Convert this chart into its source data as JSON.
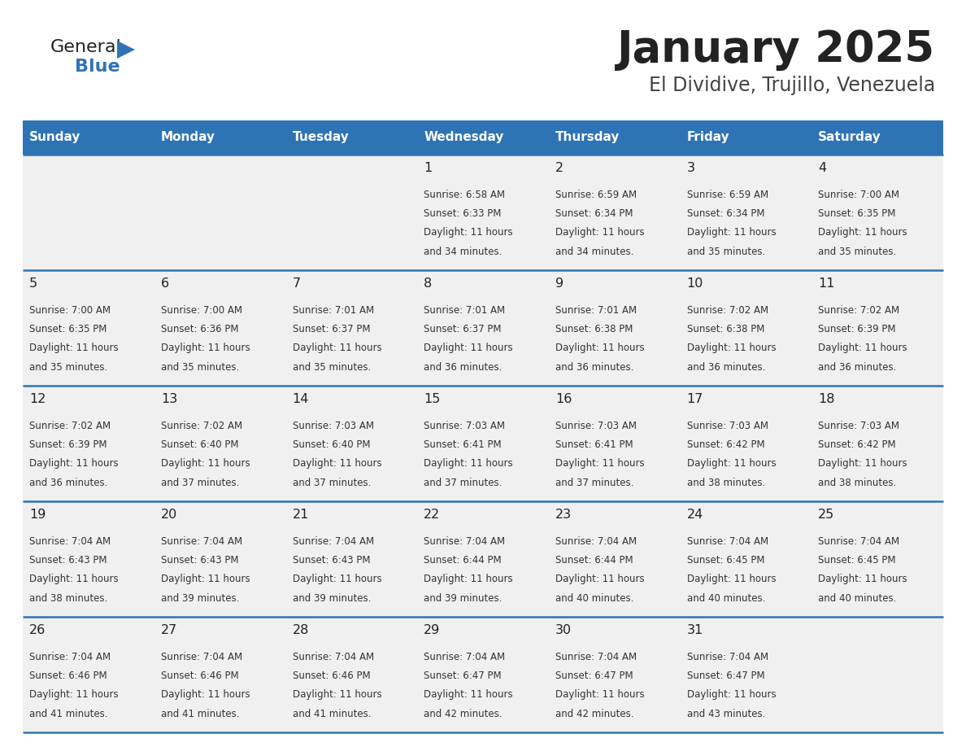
{
  "title": "January 2025",
  "subtitle": "El Dividive, Trujillo, Venezuela",
  "days_of_week": [
    "Sunday",
    "Monday",
    "Tuesday",
    "Wednesday",
    "Thursday",
    "Friday",
    "Saturday"
  ],
  "header_bg": "#2E74B5",
  "header_text": "#FFFFFF",
  "cell_bg_light": "#F0F0F0",
  "divider_color": "#2E74B5",
  "title_color": "#222222",
  "subtitle_color": "#444444",
  "day_num_color": "#222222",
  "cell_text_color": "#333333",
  "logo_general_color": "#222222",
  "logo_blue_color": "#2E74B5",
  "logo_triangle_color": "#2E74B5",
  "calendar_data": [
    [
      null,
      null,
      null,
      {
        "day": 1,
        "sunrise": "6:58 AM",
        "sunset": "6:33 PM",
        "daylight": "11 hours and 34 minutes."
      },
      {
        "day": 2,
        "sunrise": "6:59 AM",
        "sunset": "6:34 PM",
        "daylight": "11 hours and 34 minutes."
      },
      {
        "day": 3,
        "sunrise": "6:59 AM",
        "sunset": "6:34 PM",
        "daylight": "11 hours and 35 minutes."
      },
      {
        "day": 4,
        "sunrise": "7:00 AM",
        "sunset": "6:35 PM",
        "daylight": "11 hours and 35 minutes."
      }
    ],
    [
      {
        "day": 5,
        "sunrise": "7:00 AM",
        "sunset": "6:35 PM",
        "daylight": "11 hours and 35 minutes."
      },
      {
        "day": 6,
        "sunrise": "7:00 AM",
        "sunset": "6:36 PM",
        "daylight": "11 hours and 35 minutes."
      },
      {
        "day": 7,
        "sunrise": "7:01 AM",
        "sunset": "6:37 PM",
        "daylight": "11 hours and 35 minutes."
      },
      {
        "day": 8,
        "sunrise": "7:01 AM",
        "sunset": "6:37 PM",
        "daylight": "11 hours and 36 minutes."
      },
      {
        "day": 9,
        "sunrise": "7:01 AM",
        "sunset": "6:38 PM",
        "daylight": "11 hours and 36 minutes."
      },
      {
        "day": 10,
        "sunrise": "7:02 AM",
        "sunset": "6:38 PM",
        "daylight": "11 hours and 36 minutes."
      },
      {
        "day": 11,
        "sunrise": "7:02 AM",
        "sunset": "6:39 PM",
        "daylight": "11 hours and 36 minutes."
      }
    ],
    [
      {
        "day": 12,
        "sunrise": "7:02 AM",
        "sunset": "6:39 PM",
        "daylight": "11 hours and 36 minutes."
      },
      {
        "day": 13,
        "sunrise": "7:02 AM",
        "sunset": "6:40 PM",
        "daylight": "11 hours and 37 minutes."
      },
      {
        "day": 14,
        "sunrise": "7:03 AM",
        "sunset": "6:40 PM",
        "daylight": "11 hours and 37 minutes."
      },
      {
        "day": 15,
        "sunrise": "7:03 AM",
        "sunset": "6:41 PM",
        "daylight": "11 hours and 37 minutes."
      },
      {
        "day": 16,
        "sunrise": "7:03 AM",
        "sunset": "6:41 PM",
        "daylight": "11 hours and 37 minutes."
      },
      {
        "day": 17,
        "sunrise": "7:03 AM",
        "sunset": "6:42 PM",
        "daylight": "11 hours and 38 minutes."
      },
      {
        "day": 18,
        "sunrise": "7:03 AM",
        "sunset": "6:42 PM",
        "daylight": "11 hours and 38 minutes."
      }
    ],
    [
      {
        "day": 19,
        "sunrise": "7:04 AM",
        "sunset": "6:43 PM",
        "daylight": "11 hours and 38 minutes."
      },
      {
        "day": 20,
        "sunrise": "7:04 AM",
        "sunset": "6:43 PM",
        "daylight": "11 hours and 39 minutes."
      },
      {
        "day": 21,
        "sunrise": "7:04 AM",
        "sunset": "6:43 PM",
        "daylight": "11 hours and 39 minutes."
      },
      {
        "day": 22,
        "sunrise": "7:04 AM",
        "sunset": "6:44 PM",
        "daylight": "11 hours and 39 minutes."
      },
      {
        "day": 23,
        "sunrise": "7:04 AM",
        "sunset": "6:44 PM",
        "daylight": "11 hours and 40 minutes."
      },
      {
        "day": 24,
        "sunrise": "7:04 AM",
        "sunset": "6:45 PM",
        "daylight": "11 hours and 40 minutes."
      },
      {
        "day": 25,
        "sunrise": "7:04 AM",
        "sunset": "6:45 PM",
        "daylight": "11 hours and 40 minutes."
      }
    ],
    [
      {
        "day": 26,
        "sunrise": "7:04 AM",
        "sunset": "6:46 PM",
        "daylight": "11 hours and 41 minutes."
      },
      {
        "day": 27,
        "sunrise": "7:04 AM",
        "sunset": "6:46 PM",
        "daylight": "11 hours and 41 minutes."
      },
      {
        "day": 28,
        "sunrise": "7:04 AM",
        "sunset": "6:46 PM",
        "daylight": "11 hours and 41 minutes."
      },
      {
        "day": 29,
        "sunrise": "7:04 AM",
        "sunset": "6:47 PM",
        "daylight": "11 hours and 42 minutes."
      },
      {
        "day": 30,
        "sunrise": "7:04 AM",
        "sunset": "6:47 PM",
        "daylight": "11 hours and 42 minutes."
      },
      {
        "day": 31,
        "sunrise": "7:04 AM",
        "sunset": "6:47 PM",
        "daylight": "11 hours and 43 minutes."
      },
      null
    ]
  ]
}
